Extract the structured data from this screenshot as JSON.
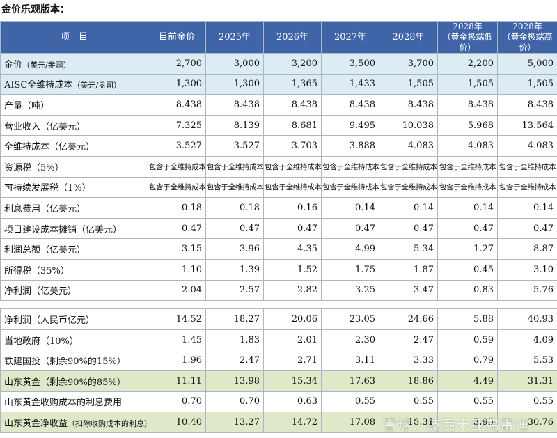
{
  "title": "金价乐观版本：",
  "headers": [
    "项　目",
    "目前金价",
    "2025年",
    "2026年",
    "2027年",
    "2028年",
    "2028年\n（黄金极端低价）",
    "2028年\n（黄金极端高价）"
  ],
  "rows": [
    {
      "label": "金价",
      "unit": "（美元/盎司）",
      "style": "blue",
      "values": [
        "2,700",
        "3,000",
        "3,200",
        "3,500",
        "3,700",
        "2,200",
        "5,000"
      ]
    },
    {
      "label": "AISC全维持成本",
      "unit": "（美元/盎司）",
      "style": "blue",
      "values": [
        "1,300",
        "1,300",
        "1,365",
        "1,433",
        "1,505",
        "1,505",
        "1,505"
      ]
    },
    {
      "label": "产量（吨）",
      "unit": "",
      "style": "",
      "values": [
        "8.438",
        "8.438",
        "8.438",
        "8.438",
        "8.438",
        "8.438",
        "8.438"
      ]
    },
    {
      "label": "营业收入（亿美元）",
      "unit": "",
      "style": "",
      "values": [
        "7.325",
        "8.139",
        "8.681",
        "9.495",
        "10.038",
        "5.968",
        "13.564"
      ]
    },
    {
      "label": "全维持成本（亿美元）",
      "unit": "",
      "style": "",
      "values": [
        "3.527",
        "3.527",
        "3.703",
        "3.888",
        "4.083",
        "4.083",
        "4.083"
      ]
    },
    {
      "label": "资源税（5%）",
      "unit": "",
      "style": "",
      "small": true,
      "values": [
        "包含于全维持成本",
        "包含于全维持成本",
        "包含于全维持成本",
        "包含于全维持成本",
        "包含于全维持成本",
        "包含于全维持成本",
        "包含于全维持成本"
      ]
    },
    {
      "label": "可持续发展税（1%）",
      "unit": "",
      "style": "",
      "small": true,
      "values": [
        "包含于全维持成本",
        "包含于全维持成本",
        "包含于全维持成本",
        "包含于全维持成本",
        "包含于全维持成本",
        "包含于全维持成本",
        "包含于全维持成本"
      ]
    },
    {
      "label": "利息费用（亿美元）",
      "unit": "",
      "style": "",
      "values": [
        "0.18",
        "0.18",
        "0.16",
        "0.14",
        "0.14",
        "0.14",
        "0.14"
      ]
    },
    {
      "label": "项目建设成本摊销（亿美元）",
      "unit": "",
      "style": "",
      "values": [
        "0.47",
        "0.47",
        "0.47",
        "0.47",
        "0.47",
        "0.47",
        "0.47"
      ]
    },
    {
      "label": "利润总额（亿美元）",
      "unit": "",
      "style": "",
      "values": [
        "3.15",
        "3.96",
        "4.35",
        "4.99",
        "5.34",
        "1.27",
        "8.87"
      ]
    },
    {
      "label": "所得税（35%）",
      "unit": "",
      "style": "",
      "values": [
        "1.10",
        "1.39",
        "1.52",
        "1.75",
        "1.87",
        "0.45",
        "3.10"
      ]
    },
    {
      "label": "净利润（亿美元）",
      "unit": "",
      "style": "",
      "values": [
        "2.04",
        "2.57",
        "2.82",
        "3.25",
        "3.47",
        "0.83",
        "5.76"
      ]
    },
    {
      "spacer": true
    },
    {
      "label": "净利润（人民币亿元）",
      "unit": "",
      "style": "",
      "values": [
        "14.52",
        "18.27",
        "20.06",
        "23.05",
        "24.66",
        "5.88",
        "40.93"
      ]
    },
    {
      "label": "当地政府（10%）",
      "unit": "",
      "style": "",
      "values": [
        "1.45",
        "1.83",
        "2.01",
        "2.30",
        "2.47",
        "0.59",
        "4.09"
      ]
    },
    {
      "label": "铁建国投（剩余90%的15%）",
      "unit": "",
      "style": "",
      "values": [
        "1.96",
        "2.47",
        "2.71",
        "3.11",
        "3.33",
        "0.79",
        "5.53"
      ]
    },
    {
      "label": "山东黄金（剩余90%的85%）",
      "unit": "",
      "style": "green",
      "values": [
        "11.11",
        "13.98",
        "15.34",
        "17.63",
        "18.86",
        "4.49",
        "31.31"
      ]
    },
    {
      "label": "山东黄金收购成本的利息费用",
      "unit": "",
      "style": "",
      "values": [
        "0.70",
        "0.70",
        "0.63",
        "0.55",
        "0.55",
        "0.55",
        "0.55"
      ]
    },
    {
      "label": "山东黄金净收益",
      "unit": "（扣除收购成本的利息）",
      "style": "green",
      "values": [
        "10.40",
        "13.27",
        "14.72",
        "17.08",
        "18.31",
        "3.95",
        "30.76"
      ]
    }
  ],
  "watermark": "雪球：波西米亚弗雷迪"
}
